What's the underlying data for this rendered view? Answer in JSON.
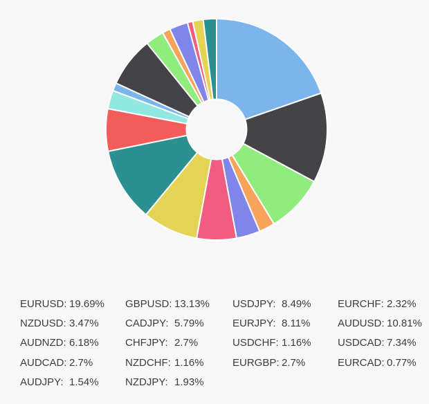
{
  "page": {
    "background_color": "#f8f8f8",
    "text_color": "#3c3c3c"
  },
  "chart_data": {
    "type": "pie",
    "title": "",
    "donut": true,
    "direction": "clockwise",
    "start_angle_deg": 0,
    "inner_radius_ratio": 0.272,
    "border_color": "#ffffff",
    "hole_color": "#fafafa",
    "palette": [
      "#7cb5ec",
      "#434348",
      "#90ed7d",
      "#f7a35c",
      "#8085e9",
      "#f15c80",
      "#e4d354",
      "#2b908f",
      "#f45b5b",
      "#91e8e1"
    ],
    "series": [
      {
        "name": "EURUSD",
        "value": 19.69
      },
      {
        "name": "GBPUSD",
        "value": 13.13
      },
      {
        "name": "USDJPY",
        "value": 8.49
      },
      {
        "name": "EURCHF",
        "value": 2.32
      },
      {
        "name": "NZDUSD",
        "value": 3.47
      },
      {
        "name": "CADJPY",
        "value": 5.79
      },
      {
        "name": "EURJPY",
        "value": 8.11
      },
      {
        "name": "AUDUSD",
        "value": 10.81
      },
      {
        "name": "AUDNZD",
        "value": 6.18
      },
      {
        "name": "CHFJPY",
        "value": 2.7
      },
      {
        "name": "USDCHF",
        "value": 1.16
      },
      {
        "name": "USDCAD",
        "value": 7.34
      },
      {
        "name": "AUDCAD",
        "value": 2.7
      },
      {
        "name": "NZDCHF",
        "value": 1.16
      },
      {
        "name": "EURGBP",
        "value": 2.7
      },
      {
        "name": "EURCAD",
        "value": 0.77
      },
      {
        "name": "AUDJPY",
        "value": 1.54
      },
      {
        "name": "NZDJPY",
        "value": 1.93
      }
    ]
  },
  "legend": {
    "columns": [
      {
        "items": [
          {
            "label": "EURUSD:",
            "value": "19.69%"
          },
          {
            "label": "NZDUSD:",
            "value": "3.47%"
          },
          {
            "label": "AUDNZD:",
            "value": "6.18%"
          },
          {
            "label": "AUDCAD:",
            "value": "2.7%"
          },
          {
            "label": "AUDJPY:",
            "value": "1.54%"
          }
        ]
      },
      {
        "items": [
          {
            "label": "GBPUSD:",
            "value": "13.13%"
          },
          {
            "label": "CADJPY:",
            "value": "5.79%"
          },
          {
            "label": "CHFJPY:",
            "value": "2.7%"
          },
          {
            "label": "NZDCHF:",
            "value": "1.16%"
          },
          {
            "label": "NZDJPY:",
            "value": "1.93%"
          }
        ]
      },
      {
        "items": [
          {
            "label": "USDJPY:",
            "value": "8.49%"
          },
          {
            "label": "EURJPY:",
            "value": "8.11%"
          },
          {
            "label": "USDCHF:",
            "value": "1.16%"
          },
          {
            "label": "EURGBP:",
            "value": "2.7%"
          }
        ]
      },
      {
        "items": [
          {
            "label": "EURCHF:",
            "value": "2.32%"
          },
          {
            "label": "AUDUSD:",
            "value": "10.81%"
          },
          {
            "label": "USDCAD:",
            "value": "7.34%"
          },
          {
            "label": "EURCAD:",
            "value": "0.77%"
          }
        ]
      }
    ]
  }
}
